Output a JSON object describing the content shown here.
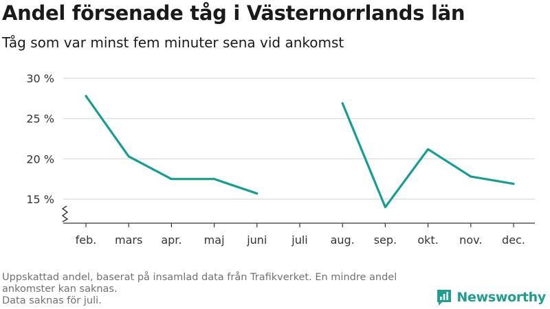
{
  "title": "Andel försenade tåg i Västernorrlands län",
  "subtitle": "Tåg som var minst fem minuter sena vid ankomst",
  "footnote": {
    "line1": "Uppskattad andel, baserat på insamlad data från Trafikverket. En mindre andel ankomster kan saknas.",
    "line2": "Data saknas för juli."
  },
  "brand": {
    "name": "Newsworthy",
    "icon": "newsworthy-logo-icon",
    "color": "#1d9e8f"
  },
  "chart_data": {
    "type": "line",
    "categories": [
      "feb.",
      "mars",
      "apr.",
      "maj",
      "juni",
      "juli",
      "aug.",
      "sep.",
      "okt.",
      "nov.",
      "dec."
    ],
    "series": [
      {
        "values": [
          27.8,
          20.3,
          17.5,
          17.5,
          15.7,
          null,
          26.9,
          14.0,
          21.2,
          17.8,
          16.9
        ]
      }
    ],
    "y_ticks": [
      15,
      20,
      25,
      30
    ],
    "y_tick_labels": [
      "15 %",
      "20 %",
      "25 %",
      "30 %"
    ],
    "ylim": [
      12,
      31
    ],
    "y_axis_break": true,
    "grid": true,
    "line_color": "#139e94",
    "gridline_color": "#d8d8d8",
    "axis_color": "#333333"
  }
}
